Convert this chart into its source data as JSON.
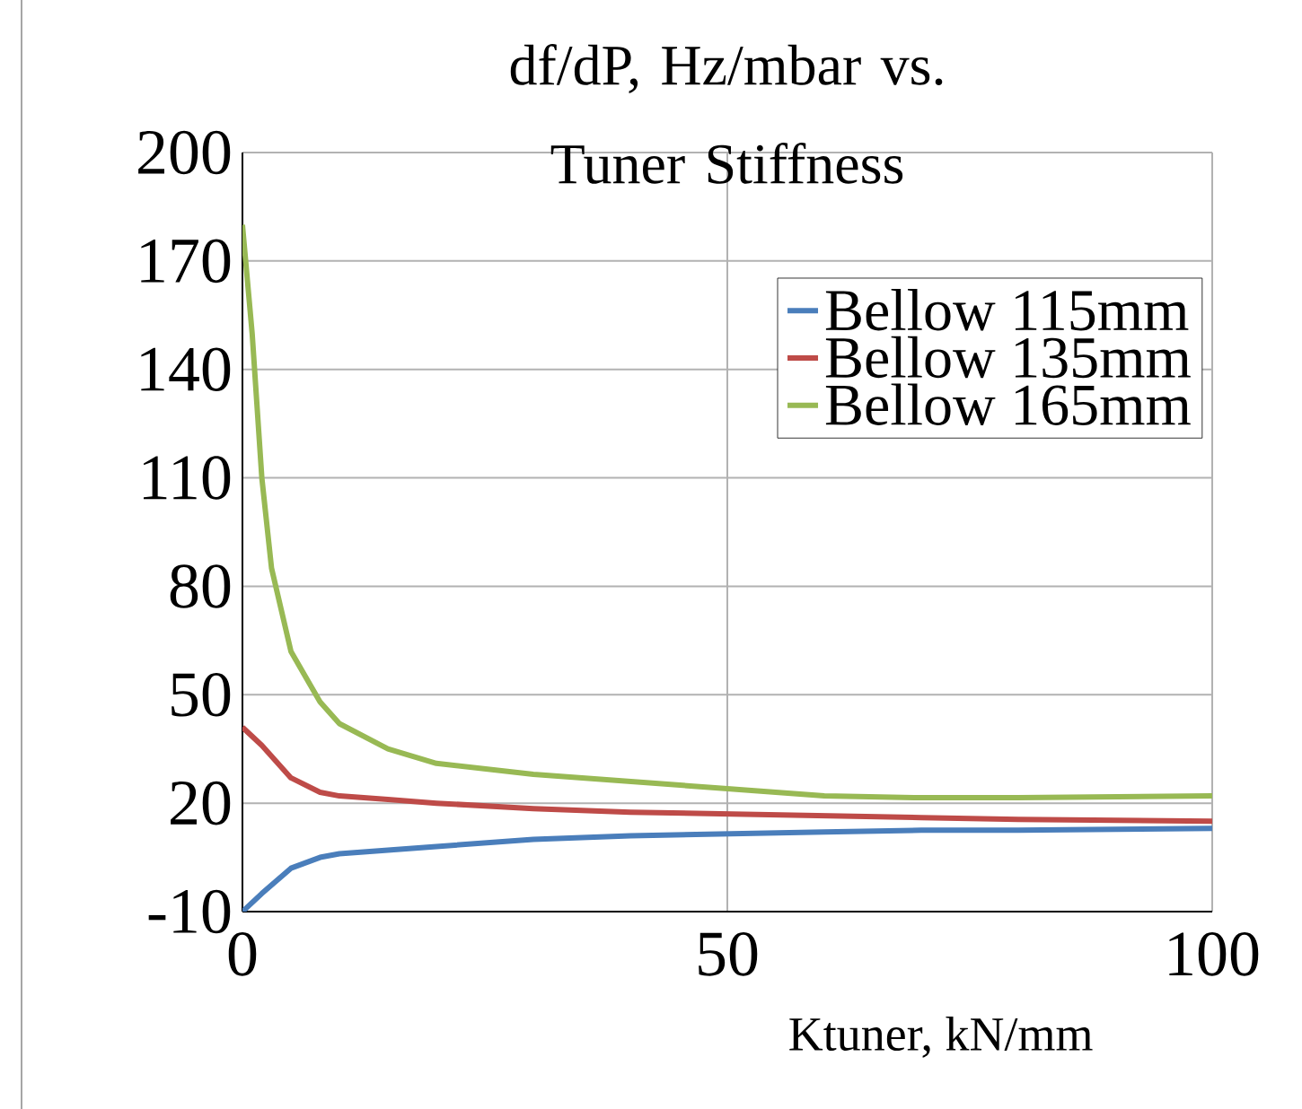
{
  "chart_data": {
    "type": "line",
    "title": "df/dP, Hz/mbar vs. Tuner Stiffness",
    "xlabel": "Ktuner, kN/mm",
    "xlim": [
      0,
      100
    ],
    "xticks": [
      0,
      50,
      100
    ],
    "ylim": [
      -10,
      200
    ],
    "yticks": [
      -10,
      20,
      50,
      80,
      110,
      140,
      170,
      200
    ],
    "grid": true,
    "legend": "top right",
    "line_style": "solid",
    "series": [
      {
        "name": "Bellow 115mm",
        "color": "#4a7ebb",
        "x": [
          0,
          2,
          5,
          8,
          10,
          15,
          20,
          30,
          40,
          50,
          60,
          70,
          80,
          100
        ],
        "values": [
          -10,
          -5,
          2,
          5,
          6,
          7,
          8,
          10,
          11,
          11.5,
          12,
          12.5,
          12.5,
          13
        ]
      },
      {
        "name": "Bellow 135mm",
        "color": "#be4b48",
        "x": [
          0,
          2,
          5,
          8,
          10,
          15,
          20,
          30,
          40,
          50,
          60,
          70,
          80,
          100
        ],
        "values": [
          41,
          36,
          27,
          23,
          22,
          21,
          20,
          18.5,
          17.5,
          17,
          16.5,
          16,
          15.5,
          15
        ]
      },
      {
        "name": "Bellow 165mm",
        "color": "#98b954",
        "x": [
          0,
          1,
          2,
          3,
          5,
          8,
          10,
          15,
          20,
          30,
          40,
          50,
          60,
          70,
          80,
          100
        ],
        "values": [
          180,
          150,
          110,
          85,
          62,
          48,
          42,
          35,
          31,
          28,
          26,
          24,
          22,
          21.5,
          21.5,
          22
        ]
      }
    ]
  }
}
